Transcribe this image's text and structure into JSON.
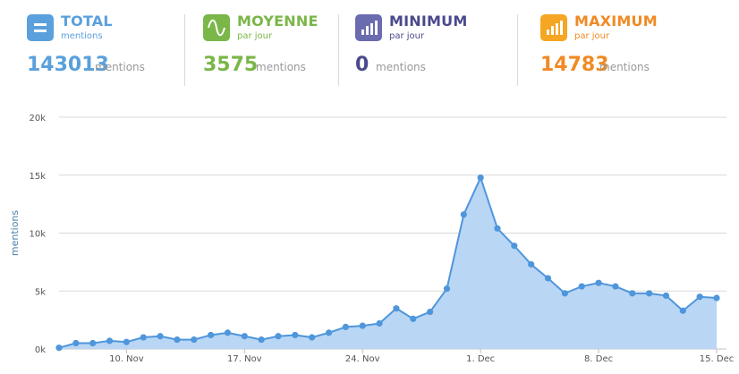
{
  "stats": {
    "total": {
      "label": "TOTAL",
      "sub": "mentions",
      "value": "143013",
      "unit": "mentions",
      "color": "#5aa0dc",
      "icon": "list-icon"
    },
    "average": {
      "label": "MOYENNE",
      "sub": "par jour",
      "value": "3575",
      "unit": "mentions",
      "color": "#7ab648",
      "icon": "wave-icon"
    },
    "minimum": {
      "label": "MINIMUM",
      "sub": "par jour",
      "value": "0",
      "unit": "mentions",
      "color": "#4a4a8c",
      "icon": "bars-low-icon"
    },
    "maximum": {
      "label": "MAXIMUM",
      "sub": "par jour",
      "value": "14783",
      "unit": "mentions",
      "color": "#f08a24",
      "icon": "bars-high-icon"
    }
  },
  "chart_data": {
    "type": "area",
    "ylabel": "mentions",
    "ylim": [
      0,
      20000
    ],
    "yticks": [
      0,
      5000,
      10000,
      15000,
      20000
    ],
    "ytick_labels": [
      "0k",
      "5k",
      "10k",
      "15k",
      "20k"
    ],
    "xticks": [
      "10. Nov",
      "17. Nov",
      "24. Nov",
      "1. Dec",
      "8. Dec",
      "15. Dec"
    ],
    "xtick_index": [
      4,
      11,
      18,
      25,
      32,
      39
    ],
    "grid": true,
    "legend": "none",
    "series": [
      {
        "color": "#4f96dc",
        "fill": "#b9d6f4",
        "values": [
          100,
          500,
          500,
          700,
          600,
          1000,
          1100,
          800,
          800,
          1200,
          1400,
          1100,
          800,
          1100,
          1200,
          1000,
          1400,
          1900,
          2000,
          2200,
          3500,
          2600,
          3200,
          5200,
          11600,
          14783,
          10400,
          8900,
          7300,
          6100,
          4800,
          5400,
          5700,
          5400,
          4800,
          4800,
          4600,
          3300,
          4500,
          4400
        ]
      }
    ]
  }
}
